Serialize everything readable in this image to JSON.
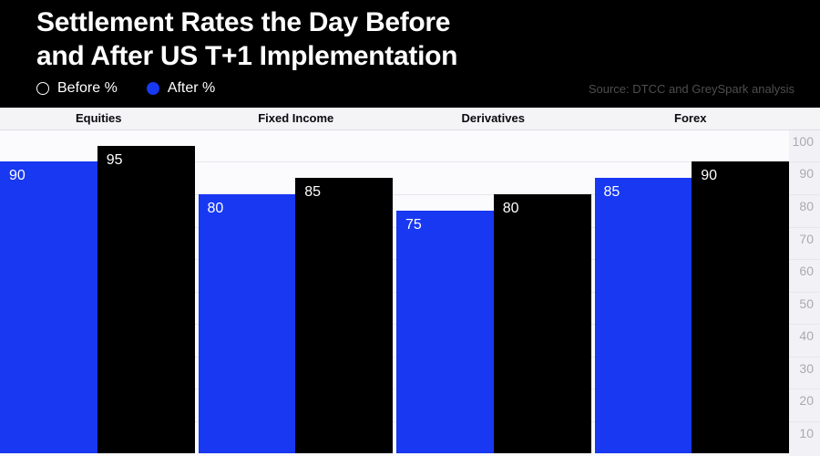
{
  "header": {
    "title_line1": "Settlement Rates the Day Before",
    "title_line2": "and After US T+1 Implementation",
    "source": "Source: DTCC and GreySpark analysis"
  },
  "legend": {
    "items": [
      {
        "label": "Before %",
        "swatch_fill": "transparent",
        "swatch_stroke": "#ffffff"
      },
      {
        "label": "After %",
        "swatch_fill": "#1838f2",
        "swatch_stroke": "#1838f2"
      }
    ]
  },
  "chart_data": {
    "type": "bar",
    "title": "Settlement Rates the Day Before and After US T+1 Implementation",
    "categories": [
      "Equities",
      "Fixed Income",
      "Derivatives",
      "Forex"
    ],
    "series": [
      {
        "name": "Before %",
        "color": "#000000",
        "values": [
          95,
          85,
          80,
          90
        ]
      },
      {
        "name": "After %",
        "color": "#1838f2",
        "values": [
          90,
          80,
          75,
          85
        ]
      }
    ],
    "bar_order": [
      "After %",
      "Before %"
    ],
    "value_labels_shown": true,
    "xlabel": "",
    "ylabel": "",
    "ylim": [
      0,
      100
    ],
    "yticks": [
      100,
      90,
      80,
      70,
      60,
      50,
      40,
      30,
      20,
      10
    ],
    "axis_side": "right",
    "grid": true,
    "legend_position": "top-left"
  },
  "colors": {
    "accent_blue": "#1838f2",
    "bar_black": "#000000",
    "header_bg": "#000000",
    "chart_bg": "#fbfbfd",
    "band_bg": "#f4f4f7",
    "gridline": "#e6e6ec",
    "axis_text": "#a9a9b1"
  }
}
